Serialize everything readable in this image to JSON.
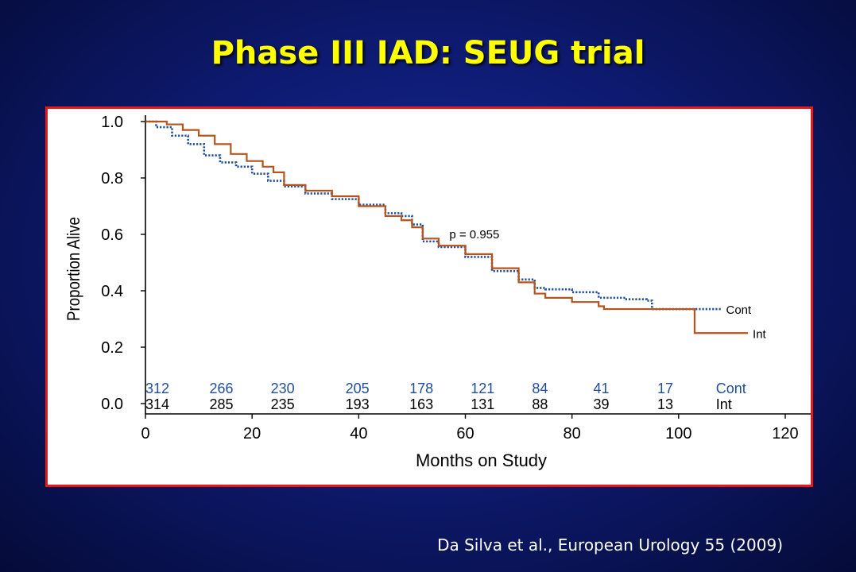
{
  "slide": {
    "title": "Phase III IAD:  SEUG trial",
    "citation": "Da Silva et al., European Urology 55 (2009)"
  },
  "colors": {
    "background": "#0e1b73",
    "title": "#ffff00",
    "frame_border": "#e21a1a",
    "cont": "#1f4e9c",
    "int": "#b5541c",
    "axis": "#000000"
  },
  "chart_data": {
    "type": "line",
    "subtype": "kaplan-meier",
    "title": "",
    "xlabel": "Months on Study",
    "ylabel": "Proportion Alive",
    "xlim": [
      0,
      120
    ],
    "ylim": [
      0,
      1.0
    ],
    "xticks": [
      "0",
      "20",
      "40",
      "60",
      "80",
      "100",
      "120"
    ],
    "yticks": [
      "0.0",
      "0.2",
      "0.4",
      "0.6",
      "0.8",
      "1.0"
    ],
    "grid": false,
    "annotation": "p = 0.955",
    "series": [
      {
        "name": "Cont",
        "style": "dotted",
        "color": "#1f4e9c",
        "x": [
          0,
          2,
          5,
          8,
          11,
          14,
          17,
          20,
          23,
          26,
          30,
          35,
          40,
          45,
          48,
          50,
          52,
          55,
          60,
          65,
          70,
          73,
          75,
          80,
          85,
          90,
          94,
          95,
          100,
          104,
          108
        ],
        "y": [
          1.0,
          0.98,
          0.95,
          0.92,
          0.88,
          0.855,
          0.84,
          0.815,
          0.79,
          0.77,
          0.745,
          0.725,
          0.705,
          0.675,
          0.665,
          0.635,
          0.575,
          0.555,
          0.52,
          0.47,
          0.44,
          0.41,
          0.405,
          0.395,
          0.375,
          0.37,
          0.365,
          0.335,
          0.335,
          0.335,
          0.335
        ]
      },
      {
        "name": "Int",
        "style": "solid",
        "color": "#b5541c",
        "x": [
          0,
          4,
          7,
          10,
          13,
          16,
          19,
          22,
          24,
          26,
          30,
          35,
          40,
          45,
          48,
          50,
          52,
          55,
          60,
          65,
          70,
          73,
          75,
          80,
          85,
          86,
          90,
          100,
          103,
          103,
          113
        ],
        "y": [
          1.0,
          0.99,
          0.97,
          0.95,
          0.92,
          0.885,
          0.86,
          0.84,
          0.82,
          0.775,
          0.755,
          0.735,
          0.7,
          0.665,
          0.65,
          0.625,
          0.585,
          0.56,
          0.53,
          0.48,
          0.43,
          0.39,
          0.375,
          0.36,
          0.345,
          0.335,
          0.335,
          0.335,
          0.335,
          0.25,
          0.25
        ]
      }
    ],
    "risk_table": {
      "times": [
        0,
        12,
        23.5,
        37.5,
        49.5,
        61,
        72.5,
        84,
        96
      ],
      "rows": [
        {
          "label": "Cont",
          "values": [
            "312",
            "266",
            "230",
            "205",
            "178",
            "121",
            "84",
            "41",
            "17"
          ]
        },
        {
          "label": "Int",
          "values": [
            "314",
            "285",
            "235",
            "193",
            "163",
            "131",
            "88",
            "39",
            "13"
          ]
        }
      ]
    }
  }
}
